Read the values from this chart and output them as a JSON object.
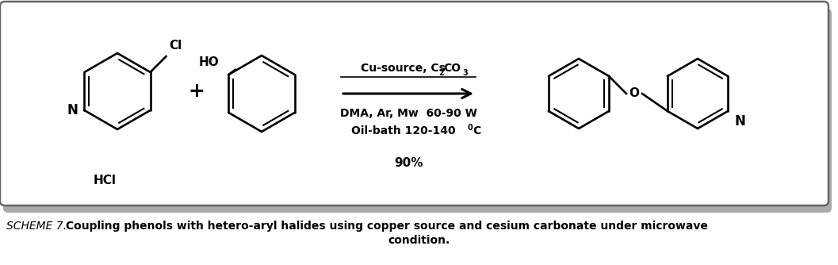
{
  "bg_color": "#ffffff",
  "figsize": [
    10.57,
    3.34
  ],
  "dpi": 100,
  "box_facecolor": "#ffffff",
  "box_edgecolor": "#666666",
  "shadow_color": "#aaaaaa",
  "title_normal": "SCHEME 7.",
  "title_bold": " Coupling phenols with hetero-aryl halides using copper source and cesium carbonate under microwave",
  "title_bold2": "condition.",
  "reagent1a": "Cu-source, Cs",
  "reagent1_sub2": "2",
  "reagent1b": "CO",
  "reagent1_sub3": "3",
  "reagent2": "DMA, Ar, Mw  60-90 W",
  "reagent3a": "Oil-bath 120-140 ",
  "reagent3_sup": "0",
  "reagent3b": "C",
  "yield_pct": "90%",
  "plus": "+",
  "cl_label": "Cl",
  "ho_label": "HO",
  "hcl_label": "HCl",
  "o_label": "O",
  "n_label": "N"
}
